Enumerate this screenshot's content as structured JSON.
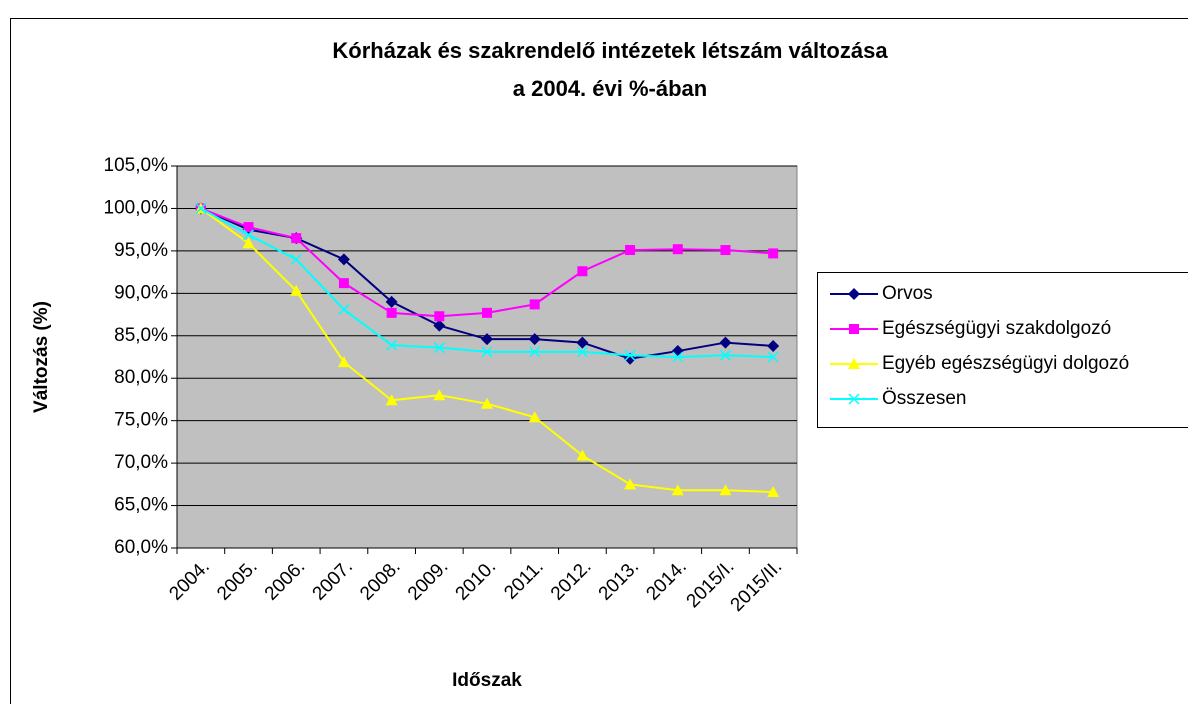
{
  "chart_data": {
    "type": "line",
    "title": [
      "Kórházak és szakrendelő intézetek létszám változása",
      "a 2004. évi %-ában"
    ],
    "x_label": "Időszak",
    "y_label": "Változás (%)",
    "categories": [
      "2004.",
      "2005.",
      "2006.",
      "2007.",
      "2008.",
      "2009.",
      "2010.",
      "2011.",
      "2012.",
      "2013.",
      "2014.",
      "2015/I.",
      "2015/II."
    ],
    "series": [
      {
        "name": "Orvos",
        "color": "#000080",
        "marker": "diamond",
        "values": [
          100,
          97.5,
          96.5,
          94,
          89,
          86.2,
          84.6,
          84.6,
          84.2,
          82.3,
          83.2,
          84.2,
          83.8
        ]
      },
      {
        "name": "Egészségügyi szakdolgozó",
        "color": "#ff00ff",
        "marker": "square",
        "values": [
          100,
          97.8,
          96.5,
          91.2,
          87.7,
          87.3,
          87.7,
          88.7,
          92.6,
          95.1,
          95.2,
          95.1,
          94.7
        ]
      },
      {
        "name": "Egyéb egészségügyi dolgozó",
        "color": "#ffff00",
        "marker": "triangle",
        "values": [
          100,
          95.9,
          90.3,
          81.9,
          77.4,
          78.0,
          77.0,
          75.4,
          70.9,
          67.5,
          66.8,
          66.8,
          66.6
        ]
      },
      {
        "name": "Összesen",
        "color": "#00ffff",
        "marker": "x",
        "values": [
          100,
          96.9,
          94.0,
          88.1,
          83.9,
          83.6,
          83.1,
          83.1,
          83.1,
          82.7,
          82.5,
          82.7,
          82.5
        ]
      }
    ],
    "ylim": [
      60,
      105
    ],
    "yticks": [
      {
        "value": 60,
        "label": "60,0%"
      },
      {
        "value": 65,
        "label": "65,0%"
      },
      {
        "value": 70,
        "label": "70,0%"
      },
      {
        "value": 75,
        "label": "75,0%"
      },
      {
        "value": 80,
        "label": "80,0%"
      },
      {
        "value": 85,
        "label": "85,0%"
      },
      {
        "value": 90,
        "label": "90,0%"
      },
      {
        "value": 95,
        "label": "95,0%"
      },
      {
        "value": 100,
        "label": "100,0%"
      },
      {
        "value": 105,
        "label": "105,0%"
      }
    ],
    "grid": true,
    "plot_background": "#c0c0c0",
    "legend": "right"
  }
}
